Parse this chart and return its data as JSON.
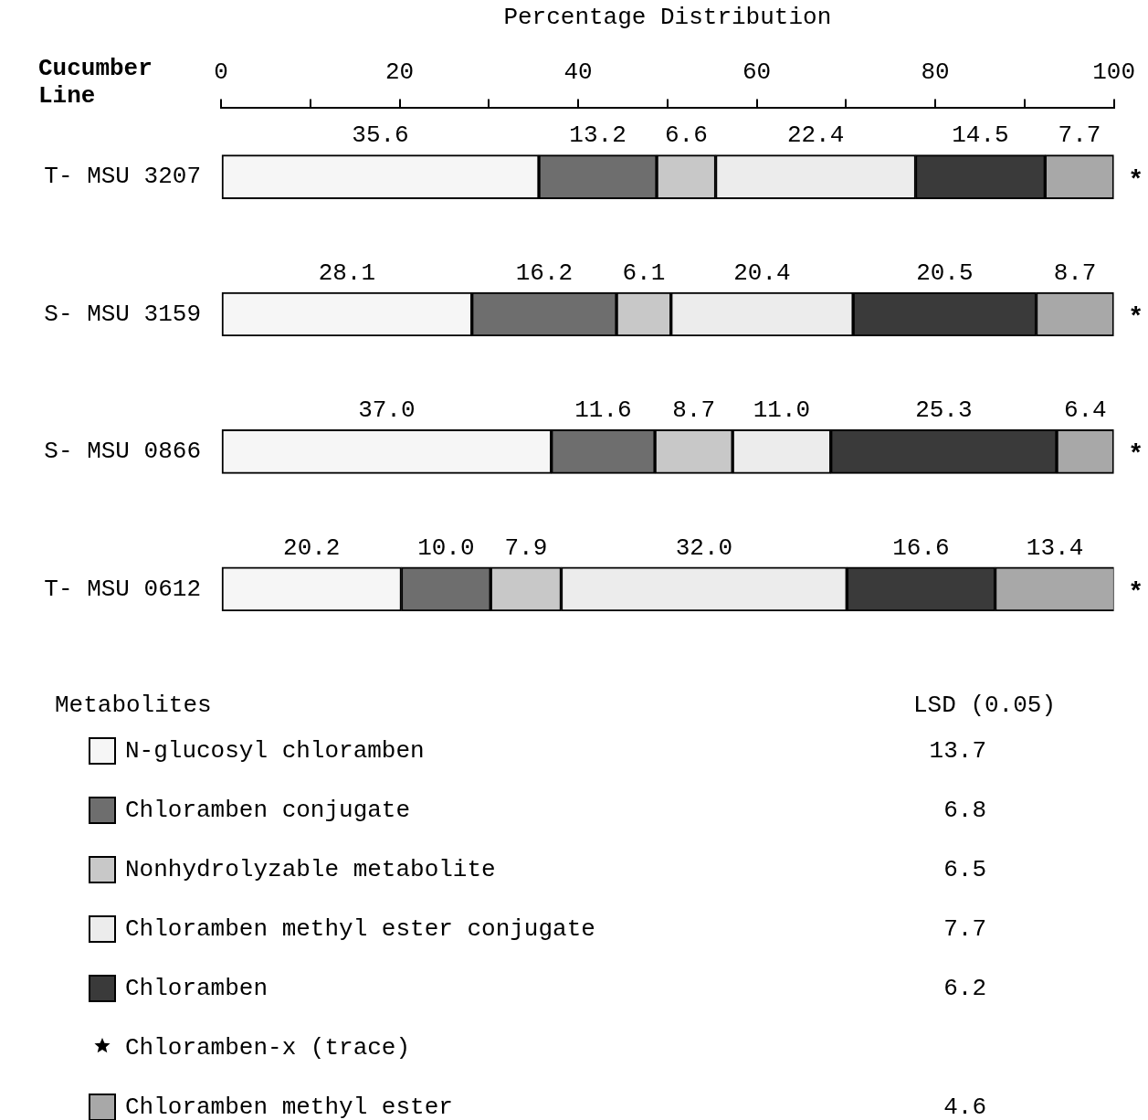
{
  "chart_data": {
    "type": "bar",
    "orientation": "horizontal",
    "stacked": true,
    "xlabel": "Percentage Distribution",
    "ylabel": "Cucumber Line",
    "legend_title": "Metabolites",
    "legend": "bottom",
    "categories": [
      "T- MSU 3207",
      "S- MSU 3159",
      "S- MSU 0866",
      "T- MSU 0612"
    ],
    "xlim": [
      0,
      100
    ],
    "xticks": [
      0,
      {
        "value": 10,
        "label": null
      },
      20,
      {
        "value": 30,
        "label": null
      },
      40,
      {
        "value": 50,
        "label": null
      },
      60,
      {
        "value": 70,
        "label": null
      },
      80,
      {
        "value": 90,
        "label": null
      },
      100
    ],
    "series": [
      {
        "name": "N-glucosyl chloramben",
        "color": "#f6f6f6",
        "values": [
          35.6,
          28.1,
          37.0,
          20.2
        ],
        "value_labels": [
          "35.6",
          "28.1",
          "37.0",
          "20.2"
        ]
      },
      {
        "name": "Chloramben conjugate",
        "color": "#6e6e6e",
        "values": [
          13.2,
          16.2,
          11.6,
          10.0
        ],
        "value_labels": [
          "13.2",
          "16.2",
          "11.6",
          "10.0"
        ]
      },
      {
        "name": "Nonhydrolyzable metabolite",
        "color": "#c8c8c8",
        "values": [
          6.6,
          6.1,
          8.7,
          7.9
        ],
        "value_labels": [
          "6.6",
          "6.1",
          "8.7",
          "7.9"
        ]
      },
      {
        "name": "Chloramben methyl ester conjugate",
        "color": "#ececec",
        "values": [
          22.4,
          20.4,
          11.0,
          32.0
        ],
        "value_labels": [
          "22.4",
          "20.4",
          "11.0",
          "32.0"
        ]
      },
      {
        "name": "Chloramben",
        "color": "#3a3a3a",
        "values": [
          14.5,
          20.5,
          25.3,
          16.6
        ],
        "value_labels": [
          "14.5",
          "20.5",
          "25.3",
          "16.6"
        ]
      },
      {
        "name": "Chloramben-x (trace)",
        "type": "scatter",
        "marker": "star",
        "color": "#000000",
        "values": [
          null,
          null,
          null,
          null
        ]
      },
      {
        "name": "Chloramben methyl ester",
        "color": "#a8a8a8",
        "values": [
          7.7,
          8.7,
          6.4,
          13.4
        ],
        "value_labels": [
          "7.7",
          "8.7",
          "6.4",
          "13.4"
        ]
      }
    ],
    "annotations": [
      "LSD (0.05)",
      "13.7",
      "6.8",
      "6.5",
      "7.7",
      "6.2",
      "4.6",
      "*",
      "*",
      "*",
      "*"
    ]
  }
}
